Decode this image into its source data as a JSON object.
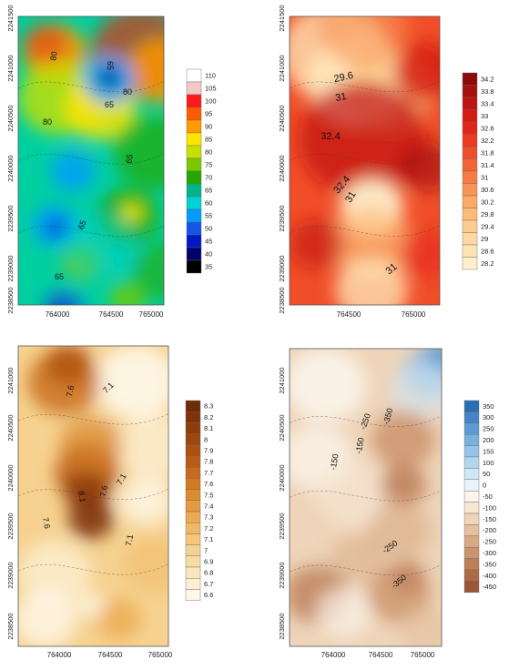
{
  "chart_data": [
    {
      "type": "heatmap",
      "title": "",
      "xlabel": "",
      "ylabel": "",
      "x_ticks": [
        "764000",
        "764500",
        "765000"
      ],
      "y_ticks": [
        "2241500",
        "2241000",
        "2240500",
        "2240000",
        "2239500",
        "2239000",
        "2238500"
      ],
      "colorbar": {
        "levels": [
          "110",
          "105",
          "100",
          "95",
          "90",
          "85",
          "80",
          "75",
          "70",
          "65",
          "60",
          "55",
          "50",
          "45",
          "40",
          "35"
        ],
        "colors": [
          "#ffffff",
          "#f7c7c7",
          "#ff1a1a",
          "#ff5a00",
          "#ff9a00",
          "#ffe400",
          "#c8e000",
          "#78c800",
          "#24a800",
          "#00b48c",
          "#00d2d2",
          "#009cff",
          "#1654e6",
          "#0018c8",
          "#00006e",
          "#000000"
        ]
      },
      "contour_labels": [
        "80",
        "65",
        "80",
        "80",
        "65",
        "65",
        "65",
        "65"
      ]
    },
    {
      "type": "heatmap",
      "title": "",
      "xlabel": "",
      "ylabel": "",
      "x_ticks": [
        "764500",
        "765000"
      ],
      "y_ticks": [
        "2241500",
        "2241000",
        "2240500",
        "2240000",
        "2239500",
        "2239000",
        "2238500"
      ],
      "colorbar": {
        "levels": [
          "34.2",
          "33.8",
          "33.4",
          "33",
          "32.6",
          "32.2",
          "31.8",
          "31.4",
          "31",
          "30.6",
          "30.2",
          "29.8",
          "29.4",
          "29",
          "28.6",
          "28.2"
        ],
        "colors": [
          "#8c0a0a",
          "#a81010",
          "#c01414",
          "#d41c14",
          "#e4261a",
          "#ec3a20",
          "#f04e28",
          "#f46434",
          "#f67c44",
          "#f89456",
          "#faaa66",
          "#fcbc78",
          "#fdcc8c",
          "#fed8a0",
          "#fee4b4",
          "#fff0cc"
        ]
      },
      "contour_labels": [
        "29.6",
        "31",
        "32.4",
        "32.4",
        "31",
        "31"
      ]
    },
    {
      "type": "heatmap",
      "title": "",
      "xlabel": "",
      "ylabel": "",
      "x_ticks": [
        "764000",
        "764500",
        "765000"
      ],
      "y_ticks": [
        "2241000",
        "2240500",
        "2240000",
        "2239500",
        "2239000",
        "2238500"
      ],
      "colorbar": {
        "levels": [
          "8.3",
          "8.2",
          "8.1",
          "8",
          "7.9",
          "7.8",
          "7.7",
          "7.6",
          "7.5",
          "7.4",
          "7.3",
          "7.2",
          "7.1",
          "7",
          "6.9",
          "6.8",
          "6.7",
          "6.6"
        ],
        "colors": [
          "#6e2c06",
          "#7e3408",
          "#8e3c0a",
          "#9e460c",
          "#ae5010",
          "#bc5c14",
          "#c86a1a",
          "#d27a22",
          "#dc8a2e",
          "#e49a3e",
          "#ecaa50",
          "#f0b864",
          "#f4c67a",
          "#f6d290",
          "#f8dca6",
          "#fae6bc",
          "#fcefd2",
          "#fef8ea"
        ]
      },
      "contour_labels": [
        "7.6",
        "7.1",
        "7.1",
        "8.1",
        "7.6",
        "7.6",
        "7.1"
      ]
    },
    {
      "type": "heatmap",
      "title": "",
      "xlabel": "",
      "ylabel": "",
      "x_ticks": [
        "764000",
        "764500",
        "765000"
      ],
      "y_ticks": [
        "2241000",
        "2240500",
        "2240000",
        "2239500",
        "2239000",
        "2238500"
      ],
      "colorbar": {
        "levels": [
          "350",
          "300",
          "250",
          "200",
          "150",
          "100",
          "50",
          "0",
          "-50",
          "-100",
          "-150",
          "-200",
          "-250",
          "-300",
          "-350",
          "-400",
          "-450"
        ],
        "colors": [
          "#2a6eb4",
          "#4484c4",
          "#5e9ad2",
          "#7ab0de",
          "#96c4e8",
          "#b2d6f0",
          "#cee6f6",
          "#e8f4fa",
          "#fbf4ea",
          "#f6e6d2",
          "#eed4b8",
          "#e4c09e",
          "#d8aa84",
          "#cc946c",
          "#be7e58",
          "#ae6a46",
          "#9c5636"
        ]
      },
      "contour_labels": [
        "-350",
        "-250",
        "-150",
        "-150",
        "-250",
        "-350"
      ]
    }
  ]
}
